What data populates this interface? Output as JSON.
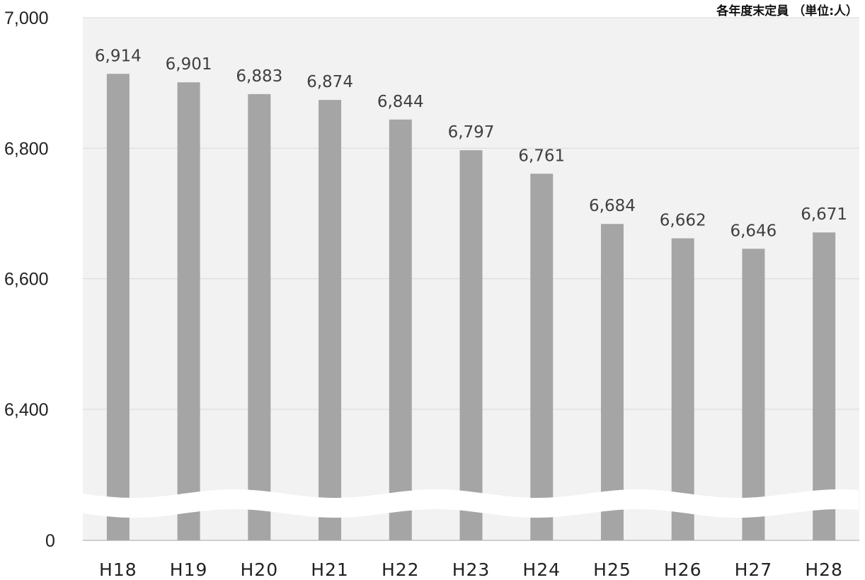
{
  "chart_data": {
    "type": "bar",
    "title": "",
    "xlabel": "",
    "ylabel": "",
    "unit_note": "各年度末定員 （単位:人）",
    "categories": [
      "H18",
      "H19",
      "H20",
      "H21",
      "H22",
      "H23",
      "H24",
      "H25",
      "H26",
      "H27",
      "H28"
    ],
    "values": [
      6914,
      6901,
      6883,
      6874,
      6844,
      6797,
      6761,
      6684,
      6662,
      6646,
      6671
    ],
    "data_labels": [
      "6,914",
      "6,901",
      "6,883",
      "6,874",
      "6,844",
      "6,797",
      "6,761",
      "6,684",
      "6,662",
      "6,646",
      "6,671"
    ],
    "y_ticks": [
      {
        "value": 7000,
        "label": "7,000"
      },
      {
        "value": 6800,
        "label": "6,800"
      },
      {
        "value": 6600,
        "label": "6,600"
      },
      {
        "value": 6400,
        "label": "6,400"
      },
      {
        "value": 0,
        "label": "0"
      }
    ],
    "ylim": [
      0,
      7000
    ],
    "axis_break": true,
    "grid": true,
    "legend": "none",
    "colors": {
      "bar": "#a5a5a5",
      "plot_background": "#f2f2f2",
      "grid": "#d9d9d9",
      "axis": "#bfbfbf"
    }
  }
}
